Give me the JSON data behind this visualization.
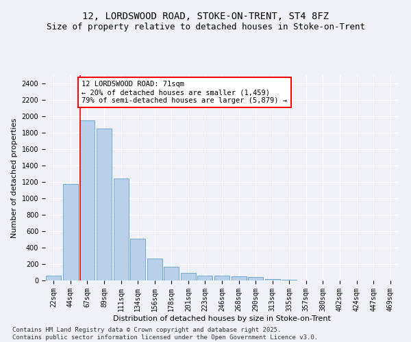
{
  "title_line1": "12, LORDSWOOD ROAD, STOKE-ON-TRENT, ST4 8FZ",
  "title_line2": "Size of property relative to detached houses in Stoke-on-Trent",
  "xlabel": "Distribution of detached houses by size in Stoke-on-Trent",
  "ylabel": "Number of detached properties",
  "categories": [
    "22sqm",
    "44sqm",
    "67sqm",
    "89sqm",
    "111sqm",
    "134sqm",
    "156sqm",
    "178sqm",
    "201sqm",
    "223sqm",
    "246sqm",
    "268sqm",
    "290sqm",
    "313sqm",
    "335sqm",
    "357sqm",
    "380sqm",
    "402sqm",
    "424sqm",
    "447sqm",
    "469sqm"
  ],
  "values": [
    55,
    1175,
    1950,
    1850,
    1240,
    510,
    270,
    165,
    90,
    60,
    55,
    50,
    40,
    15,
    5,
    2,
    1,
    1,
    0,
    0,
    0
  ],
  "bar_color": "#b8d0ea",
  "bar_edge_color": "#6fa8d0",
  "annotation_text": "12 LORDSWOOD ROAD: 71sqm\n← 20% of detached houses are smaller (1,459)\n79% of semi-detached houses are larger (5,879) →",
  "annotation_box_color": "white",
  "annotation_box_edge": "red",
  "red_line_x": 1.57,
  "ylim": [
    0,
    2500
  ],
  "yticks": [
    0,
    200,
    400,
    600,
    800,
    1000,
    1200,
    1400,
    1600,
    1800,
    2000,
    2200,
    2400
  ],
  "footer_line1": "Contains HM Land Registry data © Crown copyright and database right 2025.",
  "footer_line2": "Contains public sector information licensed under the Open Government Licence v3.0.",
  "background_color": "#eef2f8",
  "grid_color": "#ffffff",
  "title_fontsize": 10,
  "subtitle_fontsize": 9,
  "axis_label_fontsize": 8,
  "tick_fontsize": 7,
  "annotation_fontsize": 7.5,
  "footer_fontsize": 6.5
}
